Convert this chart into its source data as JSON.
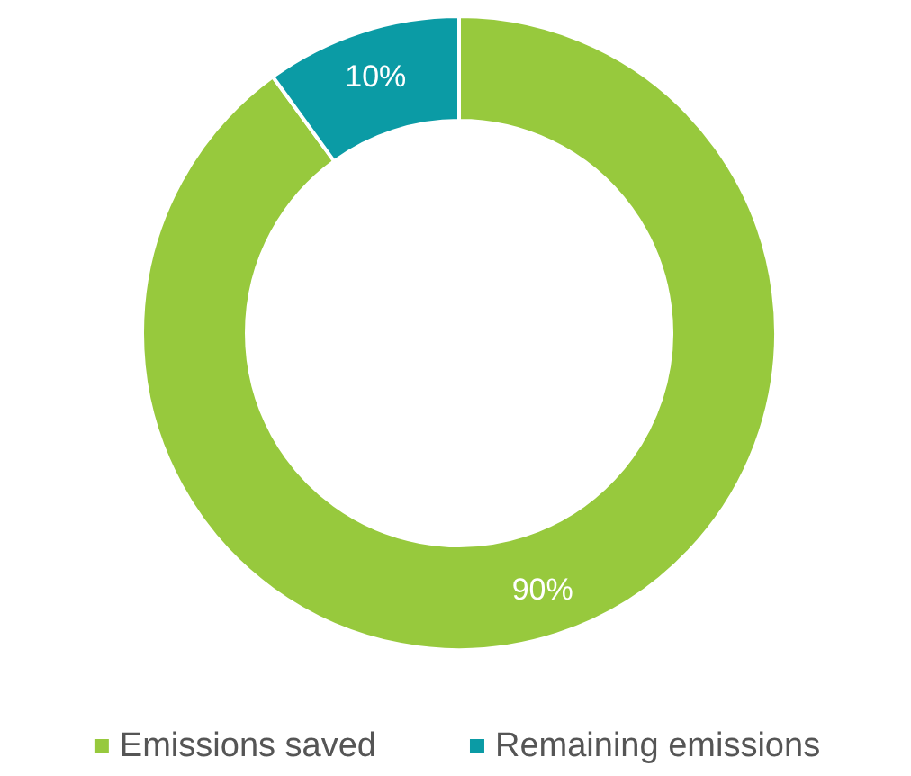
{
  "chart_data": {
    "type": "donut",
    "categories": [
      "Emissions saved",
      "Remaining emissions"
    ],
    "values": [
      90,
      10
    ],
    "colors": [
      "#97c93d",
      "#0b9ba5"
    ],
    "value_labels": [
      "90%",
      "10%"
    ],
    "legend": "bottom"
  }
}
